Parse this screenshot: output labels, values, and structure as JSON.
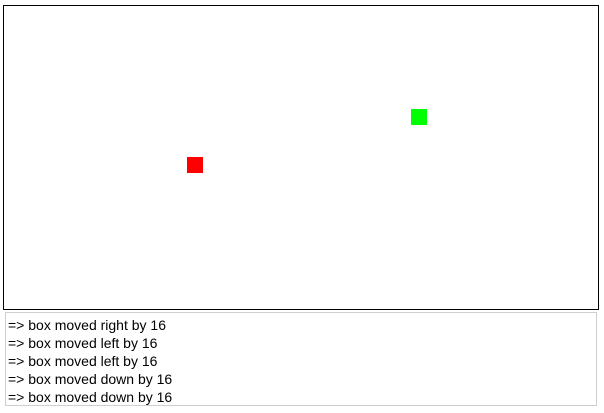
{
  "stage": {
    "red_box_color": "#ff0000",
    "green_box_color": "#00ff00"
  },
  "log": {
    "lines": [
      "=> box moved right by 16",
      "=> box moved left by 16",
      "=> box moved left by 16",
      "=> box moved down by 16",
      "=> box moved down by 16"
    ]
  }
}
